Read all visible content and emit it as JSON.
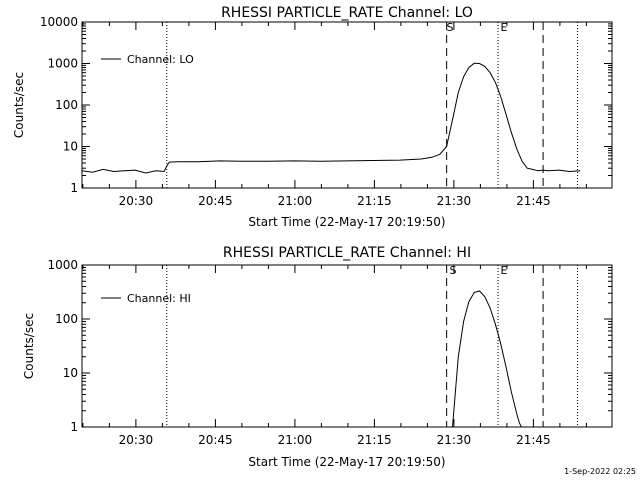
{
  "panels": [
    {
      "title": "RHESSI PARTICLE_RATE Channel: LO",
      "ylabel": "Counts/sec",
      "xlabel": "Start Time (22-May-17 20:19:50)",
      "legend": "Channel: LO",
      "marker_s": "S",
      "marker_e": "E",
      "yticks": [
        "1",
        "10",
        "100",
        "1000",
        "10000"
      ],
      "xticks": [
        "20:30",
        "20:45",
        "21:00",
        "21:15",
        "21:30",
        "21:45"
      ]
    },
    {
      "title": "RHESSI PARTICLE_RATE Channel: HI",
      "ylabel": "Counts/sec",
      "xlabel": "Start Time (22-May-17 20:19:50)",
      "legend": "Channel: HI",
      "marker_s": "S",
      "marker_e": "E",
      "yticks": [
        "1",
        "10",
        "100",
        "1000"
      ],
      "xticks": [
        "20:30",
        "20:45",
        "21:00",
        "21:15",
        "21:30",
        "21:45"
      ]
    }
  ],
  "footer": "1-Sep-2022 02:25",
  "chart_data": [
    {
      "type": "line",
      "title": "RHESSI PARTICLE_RATE Channel: LO",
      "xlabel": "Start Time (22-May-17 20:19:50)",
      "ylabel": "Counts/sec",
      "x_unit": "minutes after 20:19:50",
      "yscale": "log",
      "xlim": [
        0,
        100
      ],
      "ylim": [
        1,
        10000
      ],
      "xticks_min": [
        10.17,
        25.17,
        40.17,
        55.17,
        70.17,
        85.17
      ],
      "dotted_lines_x": [
        16.0,
        78.5,
        93.5
      ],
      "dashed_lines_x": [
        68.8,
        87.0
      ],
      "series": [
        {
          "name": "Channel: LO",
          "x": [
            0,
            2,
            4,
            6,
            8,
            10,
            12,
            14,
            15.5,
            16,
            16.5,
            18,
            22,
            26,
            30,
            35,
            40,
            45,
            50,
            55,
            60,
            64,
            66,
            67.5,
            68.8,
            70,
            71,
            72,
            73,
            74,
            75,
            76,
            77,
            78,
            79,
            80,
            81,
            82,
            83,
            84,
            85,
            86,
            87,
            88,
            90,
            92,
            94
          ],
          "y": [
            2.6,
            2.4,
            2.8,
            2.5,
            2.6,
            2.7,
            2.3,
            2.6,
            2.5,
            3.4,
            4.2,
            4.3,
            4.3,
            4.5,
            4.4,
            4.4,
            4.5,
            4.4,
            4.5,
            4.6,
            4.7,
            5.0,
            5.5,
            6.5,
            10,
            50,
            200,
            480,
            800,
            1010,
            1000,
            850,
            600,
            350,
            160,
            60,
            22,
            9,
            4.5,
            3.0,
            2.8,
            2.6,
            2.7,
            2.6,
            2.7,
            2.5,
            2.6
          ]
        }
      ]
    },
    {
      "type": "line",
      "title": "RHESSI PARTICLE_RATE Channel: HI",
      "xlabel": "Start Time (22-May-17 20:19:50)",
      "ylabel": "Counts/sec",
      "x_unit": "minutes after 20:19:50",
      "yscale": "log",
      "xlim": [
        0,
        100
      ],
      "ylim": [
        1,
        1000
      ],
      "xticks_min": [
        10.17,
        25.17,
        40.17,
        55.17,
        70.17,
        85.17
      ],
      "dotted_lines_x": [
        16.0,
        78.5,
        93.5
      ],
      "dashed_lines_x": [
        68.8,
        87.0
      ],
      "series": [
        {
          "name": "Channel: HI",
          "x": [
            69.9,
            70.5,
            71,
            72,
            73,
            74,
            75,
            76,
            77,
            78,
            79,
            80,
            81,
            82,
            82.5,
            82.9
          ],
          "y": [
            1,
            5,
            20,
            90,
            210,
            310,
            330,
            260,
            160,
            80,
            35,
            13,
            4.5,
            1.8,
            1.2,
            1
          ]
        }
      ]
    }
  ]
}
